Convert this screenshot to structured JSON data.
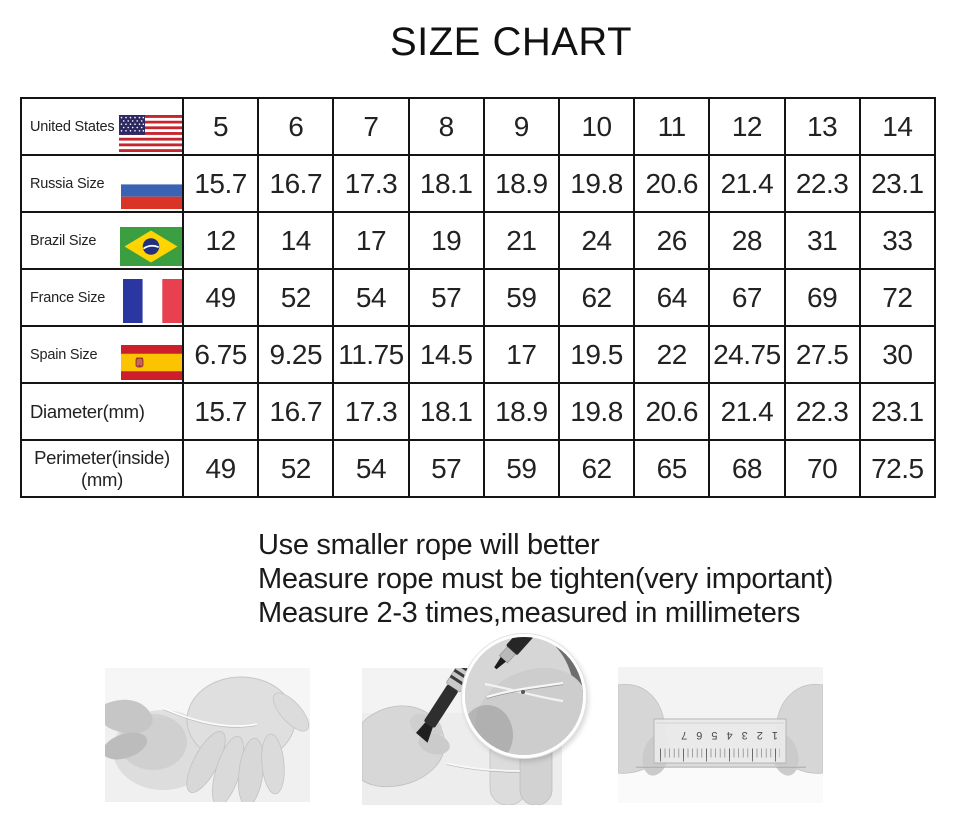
{
  "title": "SIZE CHART",
  "table": {
    "rows": [
      {
        "label": "United States",
        "flag": "us-flag",
        "values": [
          "5",
          "6",
          "7",
          "8",
          "9",
          "10",
          "11",
          "12",
          "13",
          "14"
        ]
      },
      {
        "label": "Russia Size",
        "flag": "russia-flag",
        "values": [
          "15.7",
          "16.7",
          "17.3",
          "18.1",
          "18.9",
          "19.8",
          "20.6",
          "21.4",
          "22.3",
          "23.1"
        ]
      },
      {
        "label": "Brazil Size",
        "flag": "brazil-flag",
        "values": [
          "12",
          "14",
          "17",
          "19",
          "21",
          "24",
          "26",
          "28",
          "31",
          "33"
        ]
      },
      {
        "label": "France Size",
        "flag": "france-flag",
        "values": [
          "49",
          "52",
          "54",
          "57",
          "59",
          "62",
          "64",
          "67",
          "69",
          "72"
        ]
      },
      {
        "label": "Spain Size",
        "flag": "spain-flag",
        "values": [
          "6.75",
          "9.25",
          "11.75",
          "14.5",
          "17",
          "19.5",
          "22",
          "24.75",
          "27.5",
          "30"
        ]
      },
      {
        "label": "Diameter(mm)",
        "flag": null,
        "values": [
          "15.7",
          "16.7",
          "17.3",
          "18.1",
          "18.9",
          "19.8",
          "20.6",
          "21.4",
          "22.3",
          "23.1"
        ]
      },
      {
        "label": "Perimeter(inside)",
        "label_line2": "(mm)",
        "flag": null,
        "values": [
          "49",
          "52",
          "54",
          "57",
          "59",
          "62",
          "65",
          "68",
          "70",
          "72.5"
        ]
      }
    ]
  },
  "notes": [
    "Use smaller rope will better",
    "Measure rope must be tighten(very important)",
    "Measure 2-3 times,measured in millimeters"
  ],
  "photos": [
    {
      "name": "photo-string-around-finger",
      "description": "hands wrapping a thin string around a finger"
    },
    {
      "name": "photo-mark-string-with-pen",
      "description": "marking the string overlap with a pen, magnified circular inset above"
    },
    {
      "name": "photo-string-on-ruler",
      "description": "hands holding the string flat along an upside-down ruler"
    }
  ],
  "ruler_numbers": "1 2 3 4 5 6 7",
  "colors": {
    "border": "#141414",
    "text": "#1b1b1b",
    "us_red": "#C8242E",
    "us_blue": "#2D2A63",
    "russia_blue": "#3A63B4",
    "russia_red": "#D93425",
    "brazil_green": "#3B9F42",
    "brazil_yellow": "#FFD400",
    "brazil_blue": "#21307F",
    "france_blue": "#2B37A0",
    "france_red": "#E8404E",
    "spain_red": "#CD1F2B",
    "spain_yellow": "#FCC400"
  },
  "chart_data": {
    "type": "table",
    "title": "SIZE CHART",
    "row_headers": [
      "United States",
      "Russia Size",
      "Brazil Size",
      "France Size",
      "Spain Size",
      "Diameter(mm)",
      "Perimeter(inside) (mm)"
    ],
    "columns": 10,
    "rows": [
      [
        5,
        6,
        7,
        8,
        9,
        10,
        11,
        12,
        13,
        14
      ],
      [
        15.7,
        16.7,
        17.3,
        18.1,
        18.9,
        19.8,
        20.6,
        21.4,
        22.3,
        23.1
      ],
      [
        12,
        14,
        17,
        19,
        21,
        24,
        26,
        28,
        31,
        33
      ],
      [
        49,
        52,
        54,
        57,
        59,
        62,
        64,
        67,
        69,
        72
      ],
      [
        6.75,
        9.25,
        11.75,
        14.5,
        17,
        19.5,
        22,
        24.75,
        27.5,
        30
      ],
      [
        15.7,
        16.7,
        17.3,
        18.1,
        18.9,
        19.8,
        20.6,
        21.4,
        22.3,
        23.1
      ],
      [
        49,
        52,
        54,
        57,
        59,
        62,
        65,
        68,
        70,
        72.5
      ]
    ]
  }
}
